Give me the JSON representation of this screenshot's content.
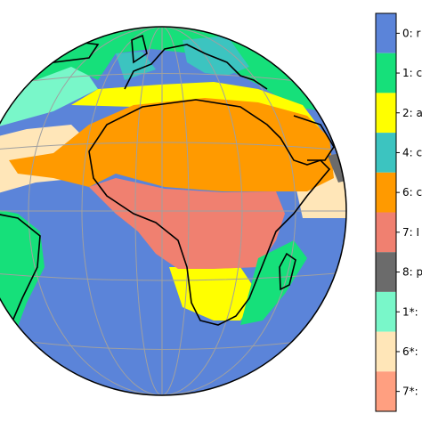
{
  "legend": {
    "items": [
      {
        "key": "0",
        "label": "0: r",
        "color": "#5b84d9"
      },
      {
        "key": "1",
        "label": "1: c",
        "color": "#16e07a"
      },
      {
        "key": "2",
        "label": "2: a",
        "color": "#ffff00"
      },
      {
        "key": "4",
        "label": "4: c",
        "color": "#3cc4c0"
      },
      {
        "key": "6",
        "label": "6: c",
        "color": "#ff9a00"
      },
      {
        "key": "7",
        "label": "7: I",
        "color": "#f08070"
      },
      {
        "key": "8",
        "label": "8: p",
        "color": "#6b6b6b"
      },
      {
        "key": "1*",
        "label": "1*:",
        "color": "#79f7c9"
      },
      {
        "key": "6*",
        "label": "6*:",
        "color": "#ffe6b8"
      },
      {
        "key": "7*",
        "label": "7*:",
        "color": "#ff9f80"
      }
    ]
  },
  "map": {
    "background_color": "#5b84d9",
    "coastline_color": "#000000",
    "graticule_color": "#a0a0a0"
  }
}
